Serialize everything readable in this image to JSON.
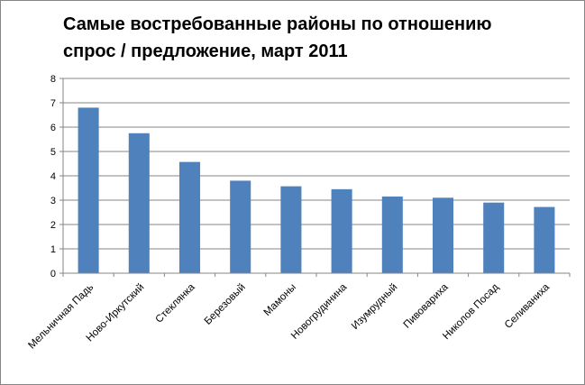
{
  "chart_data": {
    "type": "bar",
    "title_lines": [
      "Самые востребованные районы по отношению",
      "спрос / предложение, март 2011"
    ],
    "categories": [
      "Мельничная Падь",
      "Ново-Иркутский",
      "Стеклянка",
      "Березовый",
      "Мамоны",
      "Новогрудинина",
      "Изумрудный",
      "Пивовариха",
      "Николов Посад",
      "Селиваниха"
    ],
    "values": [
      6.8,
      5.75,
      4.57,
      3.8,
      3.57,
      3.45,
      3.15,
      3.1,
      2.9,
      2.72
    ],
    "ylim": [
      0,
      8
    ],
    "yticks": [
      "0",
      "1",
      "2",
      "3",
      "4",
      "5",
      "6",
      "7",
      "8"
    ],
    "grid": true,
    "legend": "none",
    "bar_color": "#4F81BD",
    "grid_color": "#868686"
  }
}
